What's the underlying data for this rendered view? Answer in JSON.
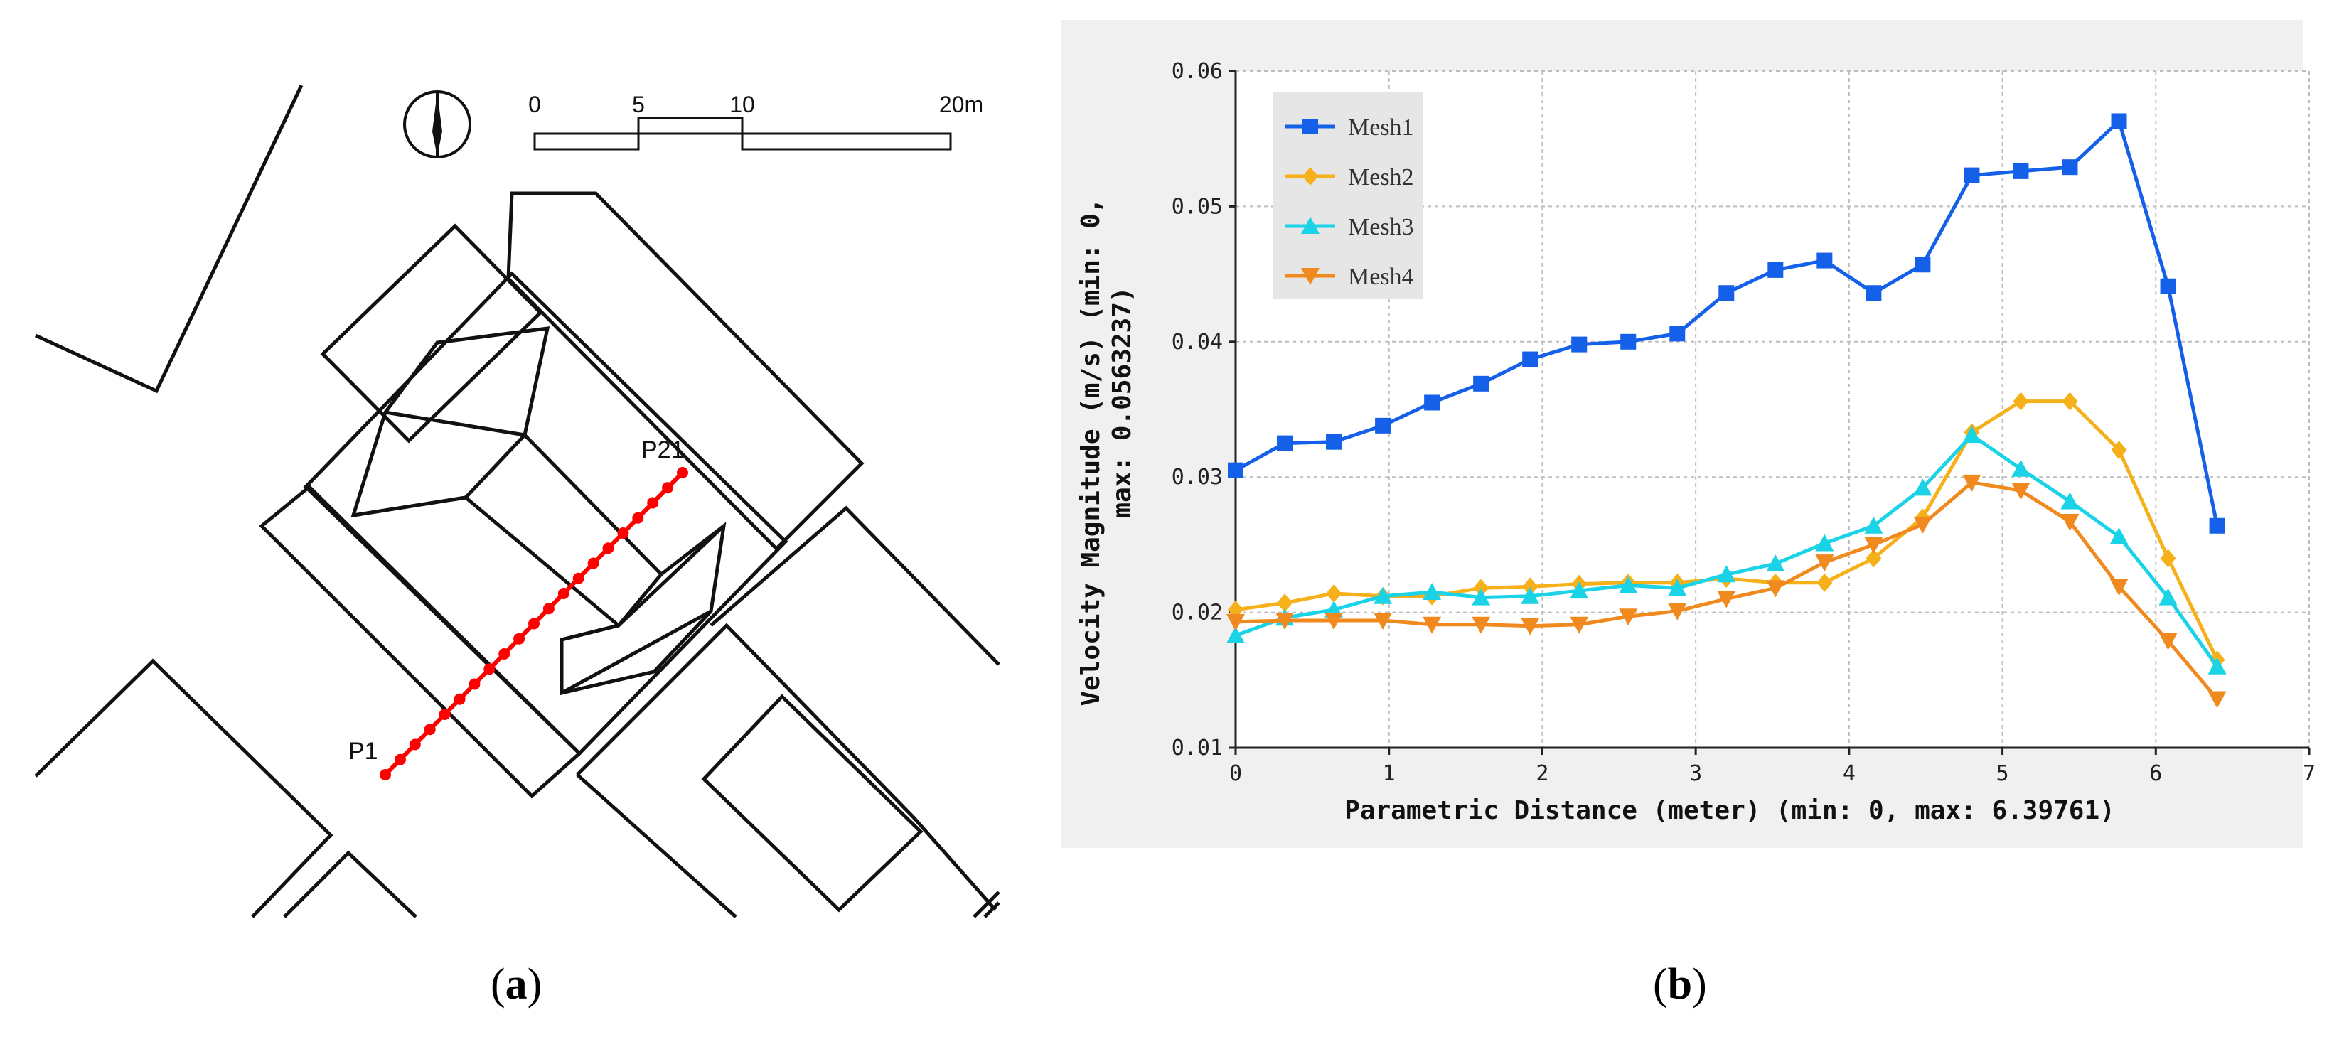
{
  "map": {
    "scale_labels": [
      "0",
      "5",
      "10",
      "20m"
    ],
    "point_start_label": "P1",
    "point_end_label": "P21",
    "point_count": 21,
    "line_color": "#ff0000",
    "caption": "a"
  },
  "figure_b_caption": "b",
  "chart_data": {
    "type": "line",
    "title": "",
    "xlabel": "Parametric Distance (meter) (min: 0, max: 6.39761)",
    "ylabel_line1": "Velocity Magnitude (m/s) (min: 0,",
    "ylabel_line2": "max: 0.0563237)",
    "xlim": [
      0,
      7
    ],
    "ylim": [
      0.01,
      0.06
    ],
    "xticks": [
      0,
      1,
      2,
      3,
      4,
      5,
      6,
      7
    ],
    "yticks": [
      0.01,
      0.02,
      0.03,
      0.04,
      0.05,
      0.06
    ],
    "ytick_labels": [
      "0.01",
      "0.02",
      "0.03",
      "0.04",
      "0.05",
      "0.06"
    ],
    "grid": true,
    "legend_position": "top-left",
    "x": [
      0,
      0.32,
      0.64,
      0.96,
      1.28,
      1.6,
      1.92,
      2.24,
      2.56,
      2.88,
      3.2,
      3.52,
      3.84,
      4.16,
      4.48,
      4.8,
      5.12,
      5.44,
      5.76,
      6.08,
      6.4
    ],
    "series": [
      {
        "name": "Mesh1",
        "color": "#1560e8",
        "marker": "square",
        "values": [
          0.0305,
          0.0325,
          0.0326,
          0.0338,
          0.0355,
          0.0369,
          0.0387,
          0.0398,
          0.04,
          0.0406,
          0.0436,
          0.0453,
          0.046,
          0.0436,
          0.0457,
          0.0523,
          0.0526,
          0.0529,
          0.0563,
          0.0441,
          0.0264
        ]
      },
      {
        "name": "Mesh2",
        "color": "#f5b01a",
        "marker": "diamond",
        "values": [
          0.0202,
          0.0207,
          0.0214,
          0.0212,
          0.0212,
          0.0218,
          0.0219,
          0.0221,
          0.0222,
          0.0222,
          0.0225,
          0.0222,
          0.0222,
          0.024,
          0.027,
          0.0333,
          0.0356,
          0.0356,
          0.032,
          0.024,
          0.0165
        ]
      },
      {
        "name": "Mesh3",
        "color": "#1ad3e6",
        "marker": "triangle-up",
        "values": [
          0.0183,
          0.0196,
          0.0202,
          0.0212,
          0.0215,
          0.0211,
          0.0212,
          0.0216,
          0.022,
          0.0218,
          0.0228,
          0.0236,
          0.0251,
          0.0264,
          0.0292,
          0.0331,
          0.0306,
          0.0282,
          0.0256,
          0.0211,
          0.016
        ]
      },
      {
        "name": "Mesh4",
        "color": "#f08a1e",
        "marker": "triangle-down",
        "values": [
          0.0193,
          0.0194,
          0.0194,
          0.0194,
          0.0191,
          0.0191,
          0.019,
          0.0191,
          0.0197,
          0.0201,
          0.021,
          0.0218,
          0.0237,
          0.025,
          0.0265,
          0.0296,
          0.029,
          0.0267,
          0.0219,
          0.0179,
          0.0136
        ]
      }
    ]
  }
}
